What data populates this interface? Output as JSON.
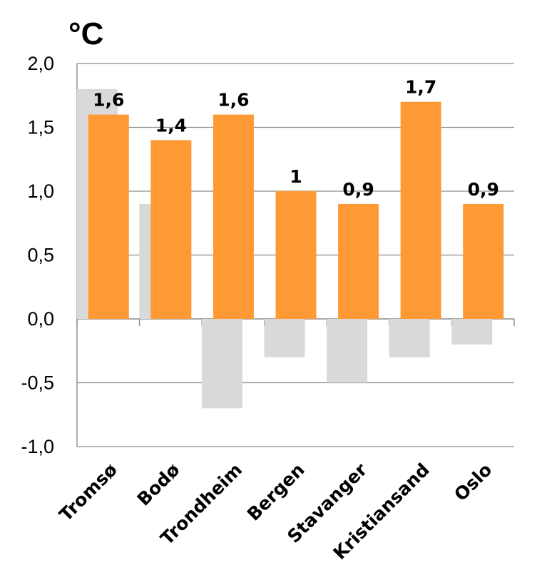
{
  "chart_data": {
    "type": "bar",
    "unit_label": "°C",
    "categories": [
      "Tromsø",
      "Bodø",
      "Trondheim",
      "Bergen",
      "Stavanger",
      "Kristiansand",
      "Oslo"
    ],
    "series": [
      {
        "color": "#d9d9d9",
        "values": [
          1.8,
          0.9,
          -0.7,
          -0.3,
          -0.5,
          -0.3,
          -0.2
        ]
      },
      {
        "color": "#ff9933",
        "values": [
          1.6,
          1.4,
          1.6,
          1.0,
          0.9,
          1.7,
          0.9
        ],
        "data_labels": [
          "1,6",
          "1,4",
          "1,6",
          "1",
          "0,9",
          "1,7",
          "0,9"
        ]
      }
    ],
    "ylim": [
      -1.0,
      2.0
    ],
    "y_ticks": [
      2.0,
      1.5,
      1.0,
      0.5,
      0.0,
      -0.5,
      -1.0
    ],
    "y_tick_labels": [
      "2,0",
      "1,5",
      "1,0",
      "0,5",
      "0,0",
      "-0,5",
      "-1,0"
    ],
    "grid": true,
    "legend": "none"
  }
}
